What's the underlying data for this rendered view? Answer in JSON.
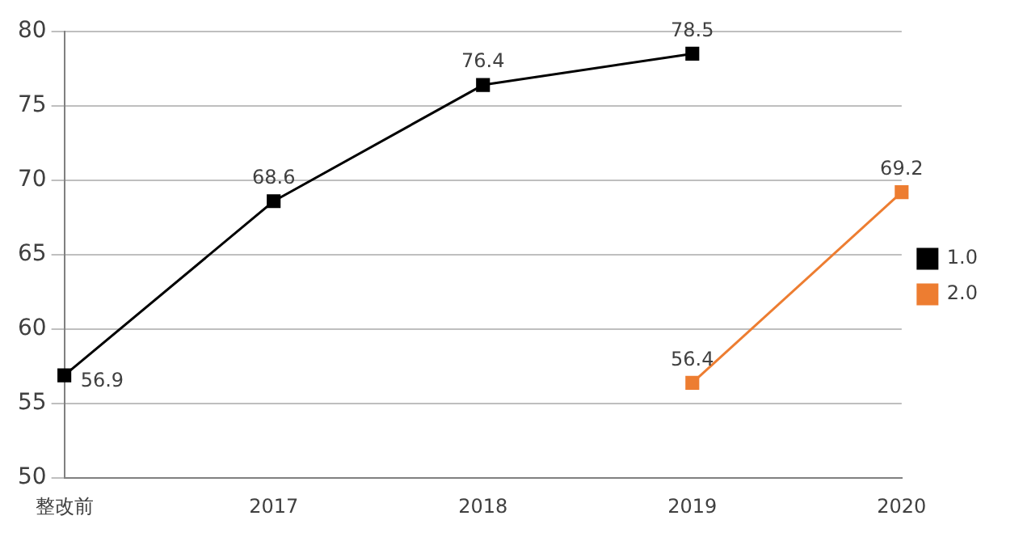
{
  "chart_data": {
    "type": "line",
    "categories": [
      "整改前",
      "2017",
      "2018",
      "2019",
      "2020"
    ],
    "series": [
      {
        "name": "1.0",
        "color": "#000000",
        "values": [
          56.9,
          68.6,
          76.4,
          78.5,
          null
        ]
      },
      {
        "name": "2.0",
        "color": "#ed7d31",
        "values": [
          null,
          null,
          null,
          56.4,
          69.2
        ]
      }
    ],
    "ylim": [
      50,
      80
    ],
    "yticks": [
      50,
      55,
      60,
      65,
      70,
      75,
      80
    ],
    "grid": "y",
    "legend": "right",
    "marker": "square",
    "line_style": "solid",
    "data_labels": true
  }
}
